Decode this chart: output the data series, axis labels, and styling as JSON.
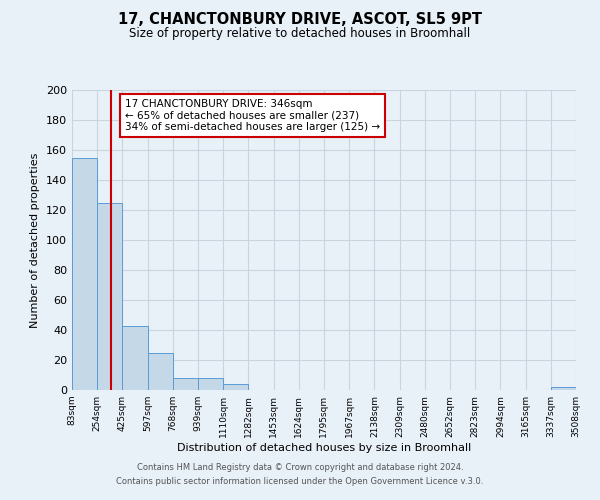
{
  "title": "17, CHANCTONBURY DRIVE, ASCOT, SL5 9PT",
  "subtitle": "Size of property relative to detached houses in Broomhall",
  "xlabel": "Distribution of detached houses by size in Broomhall",
  "ylabel": "Number of detached properties",
  "bin_edges": [
    83,
    254,
    425,
    597,
    768,
    939,
    1110,
    1282,
    1453,
    1624,
    1795,
    1967,
    2138,
    2309,
    2480,
    2652,
    2823,
    2994,
    3165,
    3337,
    3508
  ],
  "bin_labels": [
    "83sqm",
    "254sqm",
    "425sqm",
    "597sqm",
    "768sqm",
    "939sqm",
    "1110sqm",
    "1282sqm",
    "1453sqm",
    "1624sqm",
    "1795sqm",
    "1967sqm",
    "2138sqm",
    "2309sqm",
    "2480sqm",
    "2652sqm",
    "2823sqm",
    "2994sqm",
    "3165sqm",
    "3337sqm",
    "3508sqm"
  ],
  "counts": [
    155,
    125,
    43,
    25,
    8,
    8,
    4,
    0,
    0,
    0,
    0,
    0,
    0,
    0,
    0,
    0,
    0,
    0,
    0,
    2
  ],
  "bar_color": "#c5d8e8",
  "bar_edge_color": "#5b9bd5",
  "reference_line_x": 346,
  "ylim": [
    0,
    200
  ],
  "yticks": [
    0,
    20,
    40,
    60,
    80,
    100,
    120,
    140,
    160,
    180,
    200
  ],
  "annotation_box_text": [
    "17 CHANCTONBURY DRIVE: 346sqm",
    "← 65% of detached houses are smaller (237)",
    "34% of semi-detached houses are larger (125) →"
  ],
  "ref_line_color": "#cc0000",
  "footer1": "Contains HM Land Registry data © Crown copyright and database right 2024.",
  "footer2": "Contains public sector information licensed under the Open Government Licence v.3.0.",
  "bg_color": "#e8f0f8",
  "plot_bg_color": "#e8f0f8",
  "grid_color": "#c8d4e0"
}
